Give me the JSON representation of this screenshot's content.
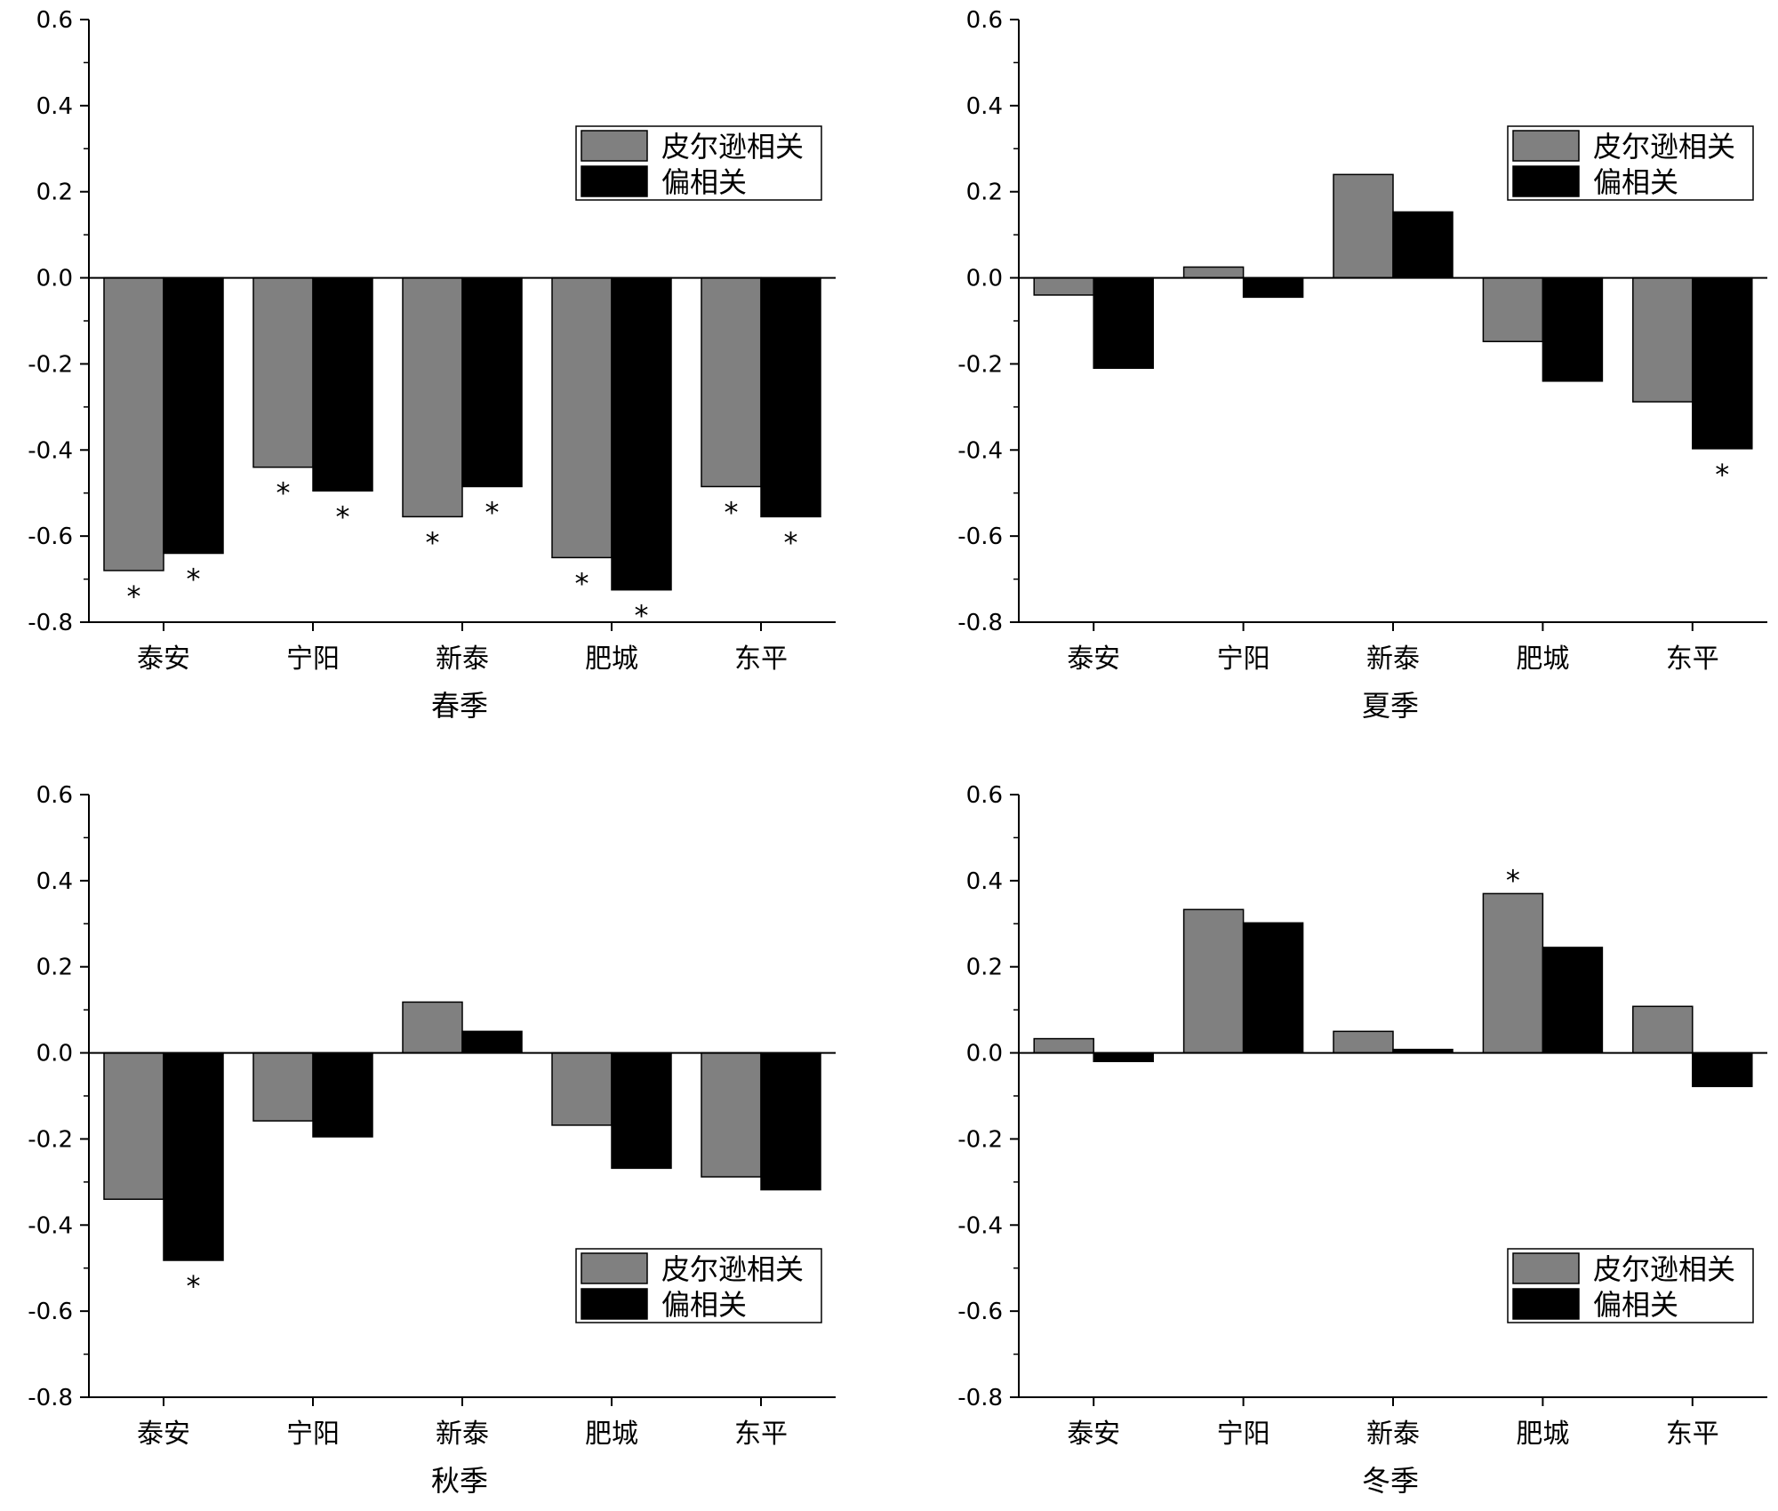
{
  "chart_data": [
    {
      "type": "bar",
      "xlabel": "春季",
      "categories": [
        "泰安",
        "宁阳",
        "新泰",
        "肥城",
        "东平"
      ],
      "series": [
        {
          "name": "皮尔逊相关",
          "values": [
            -0.68,
            -0.44,
            -0.555,
            -0.65,
            -0.485
          ],
          "marks": [
            "*",
            "*",
            "*",
            "*",
            "*"
          ]
        },
        {
          "name": "偏相关",
          "values": [
            -0.64,
            -0.495,
            -0.485,
            -0.725,
            -0.555
          ],
          "marks": [
            "*",
            "*",
            "*",
            "*",
            "*"
          ]
        }
      ],
      "ylim": [
        -0.8,
        0.6
      ],
      "yticks": [
        "0.6",
        "0.4",
        "0.2",
        "0.0",
        "-0.2",
        "-0.4",
        "-0.6",
        "-0.8"
      ],
      "legend_position": "top-right"
    },
    {
      "type": "bar",
      "xlabel": "夏季",
      "categories": [
        "泰安",
        "宁阳",
        "新泰",
        "肥城",
        "东平"
      ],
      "series": [
        {
          "name": "皮尔逊相关",
          "values": [
            -0.04,
            0.025,
            0.24,
            -0.148,
            -0.288
          ],
          "marks": [
            "",
            "",
            "",
            "",
            ""
          ]
        },
        {
          "name": "偏相关",
          "values": [
            -0.21,
            -0.045,
            0.153,
            -0.24,
            -0.397
          ],
          "marks": [
            "",
            "",
            "",
            "",
            "*"
          ]
        }
      ],
      "ylim": [
        -0.8,
        0.6
      ],
      "yticks": [
        "0.6",
        "0.4",
        "0.2",
        "0.0",
        "-0.2",
        "-0.4",
        "-0.6",
        "-0.8"
      ],
      "legend_position": "top-right"
    },
    {
      "type": "bar",
      "xlabel": "秋季",
      "categories": [
        "泰安",
        "宁阳",
        "新泰",
        "肥城",
        "东平"
      ],
      "series": [
        {
          "name": "皮尔逊相关",
          "values": [
            -0.34,
            -0.158,
            0.118,
            -0.168,
            -0.288
          ],
          "marks": [
            "",
            "",
            "",
            "",
            ""
          ]
        },
        {
          "name": "偏相关",
          "values": [
            -0.482,
            -0.195,
            0.05,
            -0.268,
            -0.318
          ],
          "marks": [
            "*",
            "",
            "",
            "",
            ""
          ]
        }
      ],
      "ylim": [
        -0.8,
        0.6
      ],
      "yticks": [
        "0.6",
        "0.4",
        "0.2",
        "0.0",
        "-0.2",
        "-0.4",
        "-0.6",
        "-0.8"
      ],
      "legend_position": "bottom-right"
    },
    {
      "type": "bar",
      "xlabel": "冬季",
      "categories": [
        "泰安",
        "宁阳",
        "新泰",
        "肥城",
        "东平"
      ],
      "series": [
        {
          "name": "皮尔逊相关",
          "values": [
            0.033,
            0.333,
            0.05,
            0.37,
            0.108
          ],
          "marks": [
            "",
            "",
            "",
            "*",
            ""
          ]
        },
        {
          "name": "偏相关",
          "values": [
            -0.02,
            0.302,
            0.008,
            0.245,
            -0.078
          ],
          "marks": [
            "",
            "",
            "",
            "",
            ""
          ]
        }
      ],
      "ylim": [
        -0.8,
        0.6
      ],
      "yticks": [
        "0.6",
        "0.4",
        "0.2",
        "0.0",
        "-0.2",
        "-0.4",
        "-0.6",
        "-0.8"
      ],
      "legend_position": "bottom-right"
    }
  ],
  "colors": {
    "pearson": "#808080",
    "partial": "#000000"
  }
}
